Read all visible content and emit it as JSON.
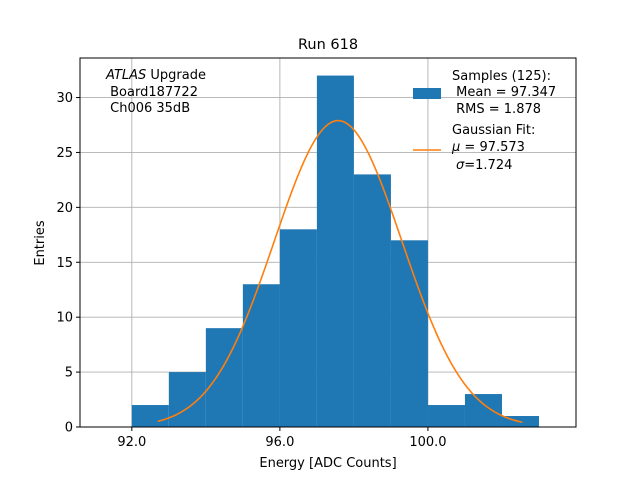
{
  "chart_data": {
    "type": "bar",
    "title": "Run 618",
    "xlabel": "Energy [ADC Counts]",
    "ylabel": "Entries",
    "xlim": [
      90.6,
      104.0
    ],
    "ylim": [
      0,
      33.6
    ],
    "grid": true,
    "xticks": [
      92.0,
      96.0,
      100.0
    ],
    "xtick_labels": [
      "92.0",
      "96.0",
      "100.0"
    ],
    "yticks": [
      0,
      5,
      10,
      15,
      20,
      25,
      30
    ],
    "ytick_labels": [
      "0",
      "5",
      "10",
      "15",
      "20",
      "25",
      "30"
    ],
    "bins": [
      {
        "x0": 92.0,
        "x1": 93.0,
        "value": 2
      },
      {
        "x0": 93.0,
        "x1": 94.0,
        "value": 5
      },
      {
        "x0": 94.0,
        "x1": 95.0,
        "value": 9
      },
      {
        "x0": 95.0,
        "x1": 96.0,
        "value": 13
      },
      {
        "x0": 96.0,
        "x1": 97.0,
        "value": 18
      },
      {
        "x0": 97.0,
        "x1": 98.0,
        "value": 32
      },
      {
        "x0": 98.0,
        "x1": 99.0,
        "value": 23
      },
      {
        "x0": 99.0,
        "x1": 100.0,
        "value": 17
      },
      {
        "x0": 100.0,
        "x1": 101.0,
        "value": 2
      },
      {
        "x0": 101.0,
        "x1": 102.0,
        "value": 3
      },
      {
        "x0": 102.0,
        "x1": 103.0,
        "value": 1
      }
    ],
    "fit": {
      "type": "gaussian",
      "mu": 97.573,
      "sigma": 1.724,
      "amplitude": 27.9,
      "x_range": [
        92.7,
        102.55
      ]
    },
    "colors": {
      "histogram": "#1f77b4",
      "fit": "#ff7f0e",
      "grid": "#b0b0b0"
    },
    "annotation": {
      "italic": "ATLAS",
      "line1_rest": " Upgrade",
      "line2": " Board187722",
      "line3": " Ch006 35dB"
    },
    "legend": {
      "position": "top-right",
      "hist_line1": "Samples (125):",
      "hist_line2": " Mean = 97.347",
      "hist_line3": " RMS = 1.878",
      "fit_line1": "Gaussian Fit:",
      "fit_line2_sym": "μ",
      "fit_line2_rest": " = 97.573",
      "fit_line3_sym": "σ",
      "fit_line3_rest": "=1.724"
    }
  }
}
